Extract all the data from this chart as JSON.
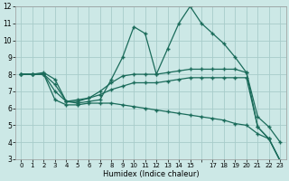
{
  "xlabel": "Humidex (Indice chaleur)",
  "background_color": "#cce8e6",
  "grid_color": "#a8ccca",
  "line_color": "#1a6b5a",
  "xlim": [
    -0.5,
    23.5
  ],
  "ylim": [
    3,
    12
  ],
  "yticks": [
    3,
    4,
    5,
    6,
    7,
    8,
    9,
    10,
    11,
    12
  ],
  "line1_y": [
    8.0,
    8.0,
    8.1,
    7.7,
    6.4,
    6.3,
    6.4,
    6.5,
    7.7,
    9.0,
    10.8,
    10.4,
    8.0,
    9.5,
    11.0,
    12.0,
    11.0,
    10.4,
    9.8,
    9.0,
    8.1,
    5.5,
    4.9,
    4.0
  ],
  "line2_y": [
    8.0,
    8.0,
    8.0,
    7.4,
    6.4,
    6.5,
    6.6,
    7.0,
    7.5,
    7.9,
    8.0,
    8.0,
    8.0,
    8.1,
    8.2,
    8.3,
    8.3,
    8.3,
    8.3,
    8.3,
    8.1,
    4.9,
    4.2,
    2.9
  ],
  "line3_y": [
    8.0,
    8.0,
    8.0,
    7.0,
    6.4,
    6.4,
    6.6,
    6.8,
    7.1,
    7.3,
    7.5,
    7.5,
    7.5,
    7.6,
    7.7,
    7.8,
    7.8,
    7.8,
    7.8,
    7.8,
    7.8,
    4.9,
    4.2,
    2.9
  ],
  "line4_y": [
    8.0,
    8.0,
    8.0,
    6.5,
    6.2,
    6.2,
    6.3,
    6.3,
    6.3,
    6.2,
    6.1,
    6.0,
    5.9,
    5.8,
    5.7,
    5.6,
    5.5,
    5.4,
    5.3,
    5.1,
    5.0,
    4.5,
    4.2,
    2.9
  ]
}
